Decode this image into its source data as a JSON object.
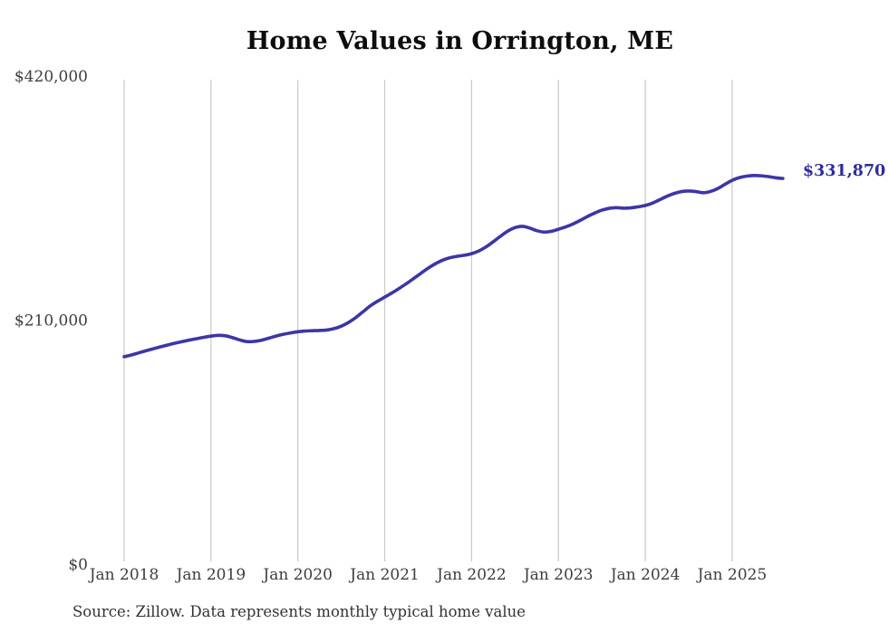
{
  "title": "Home Values in Orrington, ME",
  "source_note": "Source: Zillow. Data represents monthly typical home value",
  "colors": {
    "background": "#ffffff",
    "line": "#3c36a6",
    "final_label": "#2e2b9e",
    "grid": "#cccccc",
    "axis_text": "#3d3d3d",
    "title_text": "#0d0d0d",
    "source_text": "#333333"
  },
  "chart_data": {
    "type": "line",
    "title": "Home Values in Orrington, ME",
    "xlabel": "",
    "ylabel": "",
    "grid": "vertical-only",
    "legend": false,
    "ylim": [
      0,
      420000
    ],
    "y_ticks": [
      0,
      210000,
      420000
    ],
    "y_tick_labels": [
      "$0",
      "$210,000",
      "$420,000"
    ],
    "x_tick_labels": [
      "Jan 2018",
      "Jan 2019",
      "Jan 2020",
      "Jan 2021",
      "Jan 2022",
      "Jan 2023",
      "Jan 2024",
      "Jan 2025"
    ],
    "x_start_month": "2018-01",
    "x_end_month": "2025-08",
    "months_per_tick": 12,
    "final_value": 331870,
    "final_value_label": "$331,870",
    "series": [
      {
        "name": "Monthly typical home value",
        "values": [
          178500,
          180000,
          181800,
          183600,
          185300,
          187000,
          188600,
          190100,
          191500,
          192800,
          194000,
          195200,
          196200,
          196900,
          196500,
          194900,
          192900,
          191500,
          191700,
          192800,
          194500,
          196300,
          197800,
          199000,
          200000,
          200600,
          200900,
          201100,
          201500,
          202700,
          204800,
          208000,
          212200,
          217200,
          222200,
          226200,
          229800,
          233400,
          237300,
          241400,
          245800,
          250300,
          254700,
          258500,
          261600,
          263700,
          264900,
          265800,
          267200,
          269500,
          273000,
          277500,
          282200,
          286600,
          289600,
          290700,
          289300,
          287000,
          285800,
          286400,
          288200,
          290200,
          292700,
          295800,
          299100,
          302100,
          304600,
          306200,
          306800,
          306300,
          306600,
          307500,
          308700,
          310700,
          313600,
          316600,
          319000,
          320600,
          321100,
          320600,
          319600,
          320700,
          323200,
          326800,
          330300,
          332600,
          333900,
          334400,
          334200,
          333500,
          332500,
          331870
        ]
      }
    ]
  }
}
